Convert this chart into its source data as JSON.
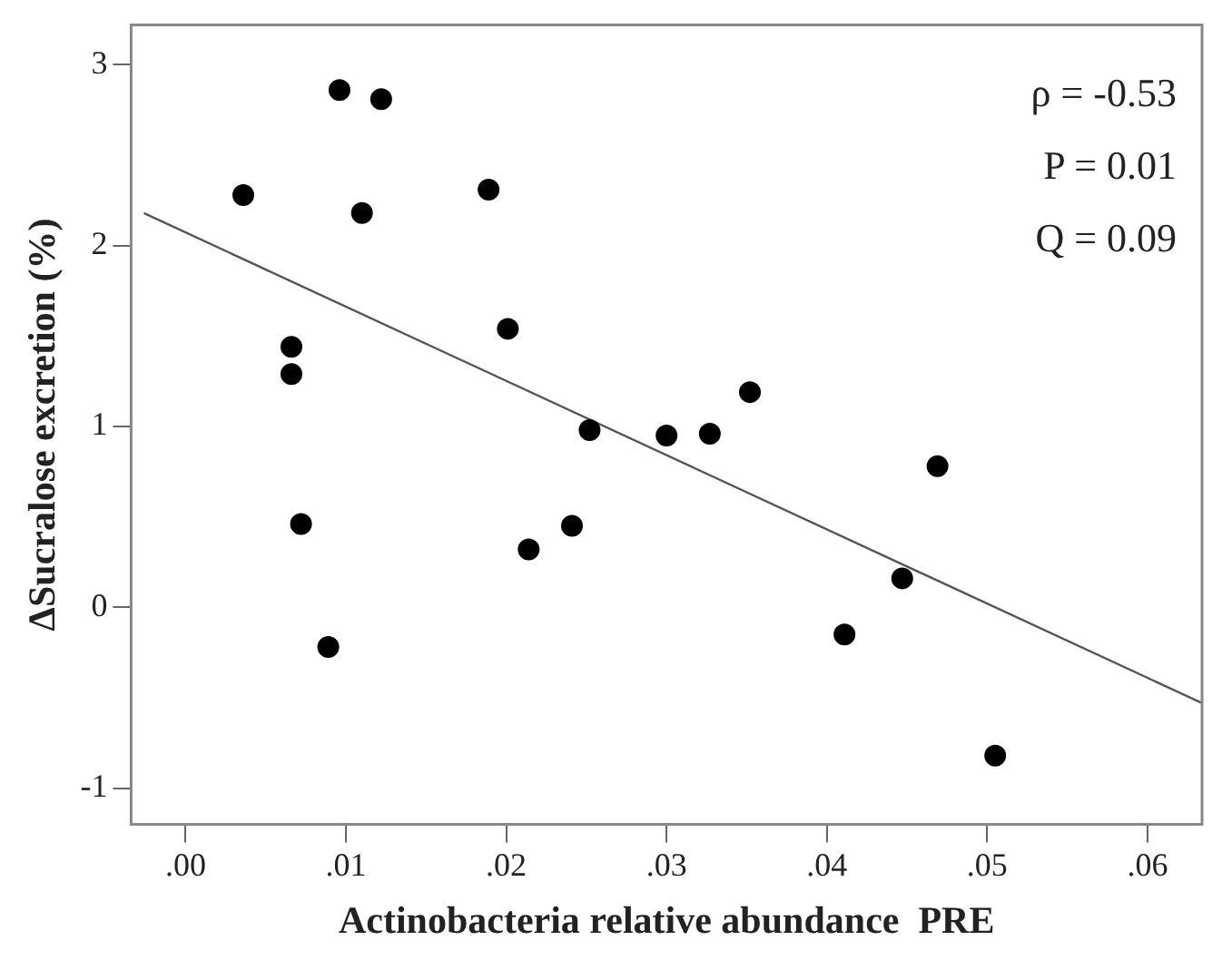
{
  "chart_data": {
    "type": "scatter",
    "xlabel": "Actinobacteria relative abundance  PRE",
    "ylabel": "ΔSucralose excretion (%)",
    "annotations": [
      "ρ = -0.53",
      "P = 0.01",
      "Q = 0.09"
    ],
    "series": [
      {
        "color": "#000000",
        "marker": "circle",
        "x": [
          0.0036,
          0.0096,
          0.0122,
          0.011,
          0.0189,
          0.0066,
          0.0066,
          0.0201,
          0.0072,
          0.0089,
          0.0214,
          0.0241,
          0.0252,
          0.03,
          0.0327,
          0.0352,
          0.0469,
          0.0447,
          0.0411,
          0.0505
        ],
        "values": [
          2.28,
          2.86,
          2.81,
          2.18,
          2.31,
          1.44,
          1.29,
          1.54,
          0.46,
          -0.22,
          0.32,
          0.45,
          0.98,
          0.95,
          0.96,
          1.19,
          0.78,
          0.16,
          -0.15,
          -0.82
        ]
      },
      {
        "type": "line",
        "marker": "none",
        "color": "#555555",
        "x": [
          -0.0026,
          0.0634
        ],
        "values": [
          2.18,
          -0.53
        ]
      }
    ],
    "xlim": [
      -0.0034,
      0.0634
    ],
    "xticks": [
      {
        "value": 0,
        "label": ".00"
      },
      {
        "value": 0.01,
        "label": ".01"
      },
      {
        "value": 0.02,
        "label": ".02"
      },
      {
        "value": 0.03,
        "label": ".03"
      },
      {
        "value": 0.04,
        "label": ".04"
      },
      {
        "value": 0.05,
        "label": ".05"
      },
      {
        "value": 0.06,
        "label": ".06"
      }
    ],
    "ylim": [
      -1.2,
      3.22
    ],
    "yticks": [
      -1,
      0,
      1,
      2,
      3
    ],
    "grid": false,
    "legend": false
  }
}
